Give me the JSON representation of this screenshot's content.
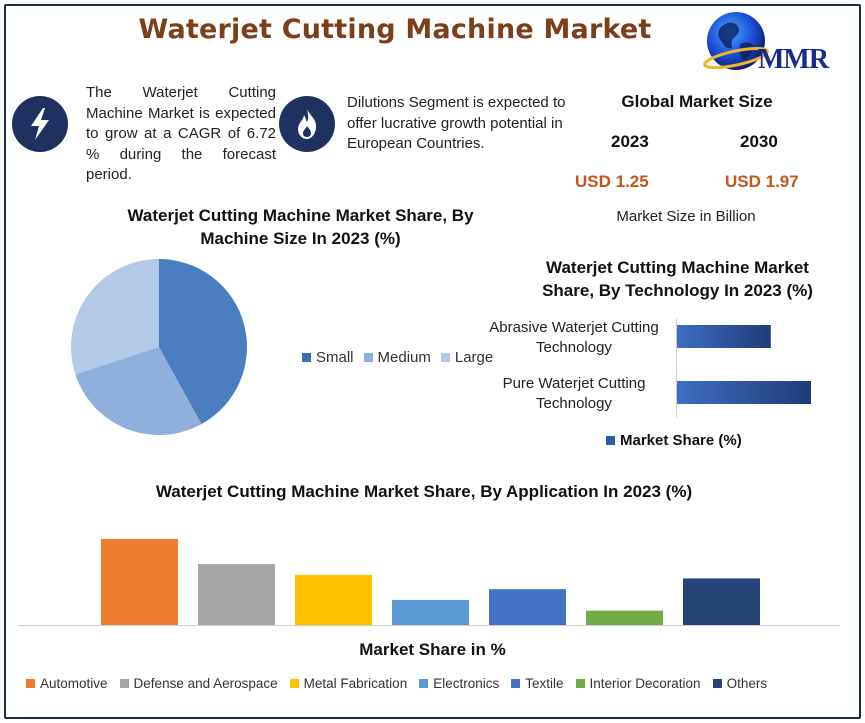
{
  "header": {
    "title": "Waterjet Cutting Machine Market",
    "logo_text": "MMR"
  },
  "info": {
    "cagr_text": "The Waterjet Cutting Machine Market is expected to grow at a CAGR of 6.72 % during the forecast period.",
    "cagr_icon": "lightning-icon",
    "dilution_text": "Dilutions Segment is expected to offer lucrative growth potential in European Countries.",
    "dilution_icon": "flame-icon"
  },
  "market_size": {
    "title": "Global Market Size",
    "year_start": "2023",
    "year_end": "2030",
    "value_start": "USD 1.25",
    "value_end": "USD 1.97",
    "unit": "Market Size in Billion"
  },
  "colors": {
    "accent_title": "#7b3f1a",
    "value_orange": "#c4561b",
    "icon_navy": "#1e3160"
  },
  "chart_data": [
    {
      "type": "pie",
      "title": "Waterjet Cutting Machine Market Share, By Machine Size In 2023 (%)",
      "categories": [
        "Small",
        "Medium",
        "Large"
      ],
      "values": [
        42,
        28,
        30
      ],
      "colors": [
        "#4a7ec0",
        "#8fb0dc",
        "#b3c9e6"
      ]
    },
    {
      "type": "bar",
      "orientation": "horizontal",
      "title": "Waterjet Cutting Machine Market Share, By Technology In 2023 (%)",
      "categories": [
        "Abrasive Waterjet Cutting Technology",
        "Pure Waterjet Cutting Technology"
      ],
      "series": [
        {
          "name": "Market Share (%)",
          "values": [
            42,
            60
          ]
        }
      ],
      "legend": "bottom",
      "colors": [
        "#3d6fc4",
        "#1f3b78"
      ]
    },
    {
      "type": "bar",
      "title": "Waterjet Cutting Machine Market Share, By Application In 2023 (%)",
      "xlabel": "Market Share in %",
      "categories": [
        "Automotive",
        "Defense and Aerospace",
        "Metal Fabrication",
        "Electronics",
        "Textile",
        "Interior Decoration",
        "Others"
      ],
      "values": [
        24,
        17,
        14,
        7,
        10,
        4,
        13
      ],
      "colors": [
        "#ed7d31",
        "#a5a5a5",
        "#ffc000",
        "#5b9bd5",
        "#4472c4",
        "#70ad47",
        "#264478"
      ],
      "legend": "bottom"
    }
  ]
}
